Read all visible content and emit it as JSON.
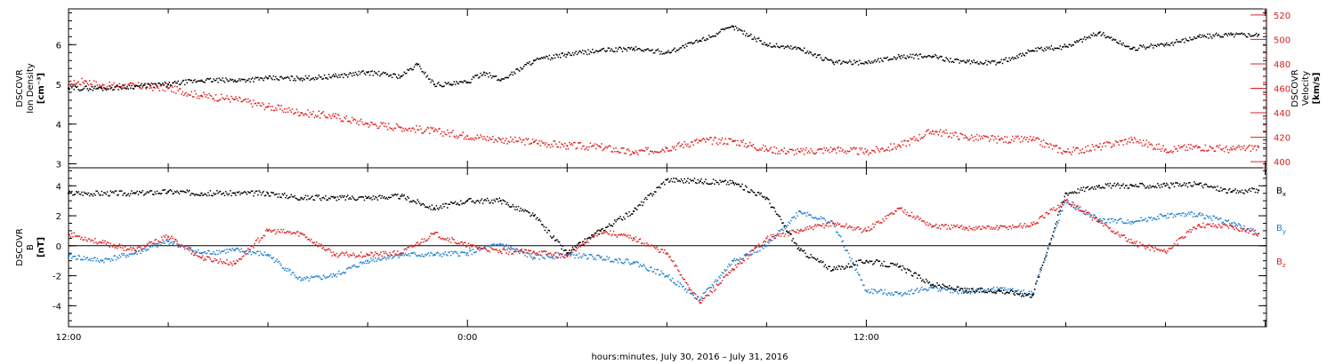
{
  "xlabel": "hours:minutes, July 30, 2016 – July 31, 2016",
  "x_tick_labels": [
    "12:00",
    "0:00",
    "12:00"
  ],
  "colors": {
    "black": "#000000",
    "red": "#e02020",
    "blue": "#1e7fd0"
  },
  "chart_data": [
    {
      "type": "scatter",
      "panel": "top",
      "x_unit": "hours since 12:00 July 30, 2016",
      "xlim": [
        0,
        36
      ],
      "left_axis": {
        "ylabel_lines": [
          "DSCOVR",
          "Ion Density",
          "[cm⁻³]"
        ],
        "ylim": [
          2.9,
          6.9
        ],
        "ticks": [
          3,
          4,
          5,
          6
        ]
      },
      "right_axis": {
        "ylabel_lines": [
          "DSCOVR",
          "Velocity",
          "[km/s]"
        ],
        "ylim": [
          395,
          525
        ],
        "ticks": [
          400,
          420,
          440,
          460,
          480,
          500,
          520
        ]
      },
      "series": [
        {
          "name": "Ion Density",
          "axis": "left",
          "color": "#000000",
          "points": [
            [
              0.0,
              4.9
            ],
            [
              1.0,
              4.9
            ],
            [
              2.0,
              4.95
            ],
            [
              3.0,
              5.0
            ],
            [
              4.0,
              5.1
            ],
            [
              5.0,
              5.1
            ],
            [
              6.0,
              5.15
            ],
            [
              7.0,
              5.15
            ],
            [
              8.0,
              5.2
            ],
            [
              9.0,
              5.3
            ],
            [
              10.0,
              5.2
            ],
            [
              10.5,
              5.5
            ],
            [
              11.0,
              5.0
            ],
            [
              11.5,
              5.0
            ],
            [
              12.0,
              5.05
            ],
            [
              12.5,
              5.3
            ],
            [
              13.0,
              5.1
            ],
            [
              14.0,
              5.6
            ],
            [
              15.0,
              5.75
            ],
            [
              16.0,
              5.85
            ],
            [
              17.0,
              5.9
            ],
            [
              18.0,
              5.8
            ],
            [
              19.0,
              6.1
            ],
            [
              20.0,
              6.45
            ],
            [
              21.0,
              6.0
            ],
            [
              22.0,
              5.9
            ],
            [
              23.0,
              5.55
            ],
            [
              24.0,
              5.55
            ],
            [
              25.0,
              5.7
            ],
            [
              26.0,
              5.7
            ],
            [
              27.0,
              5.55
            ],
            [
              28.0,
              5.55
            ],
            [
              29.0,
              5.85
            ],
            [
              30.0,
              5.95
            ],
            [
              31.0,
              6.3
            ],
            [
              32.0,
              5.9
            ],
            [
              33.0,
              6.0
            ],
            [
              34.0,
              6.2
            ],
            [
              35.0,
              6.25
            ],
            [
              35.8,
              6.25
            ]
          ]
        },
        {
          "name": "Velocity",
          "axis": "right",
          "color": "#e02020",
          "points": [
            [
              0.0,
              463
            ],
            [
              0.5,
              466
            ],
            [
              1.0,
              462
            ],
            [
              2.0,
              462
            ],
            [
              3.0,
              460
            ],
            [
              4.0,
              454
            ],
            [
              5.0,
              451
            ],
            [
              6.0,
              445
            ],
            [
              7.0,
              440
            ],
            [
              8.0,
              437
            ],
            [
              9.0,
              431
            ],
            [
              10.0,
              428
            ],
            [
              11.0,
              425
            ],
            [
              12.0,
              421
            ],
            [
              13.0,
              418
            ],
            [
              14.0,
              416
            ],
            [
              15.0,
              413
            ],
            [
              16.0,
              412
            ],
            [
              17.0,
              407
            ],
            [
              18.0,
              411
            ],
            [
              19.0,
              417
            ],
            [
              20.0,
              417
            ],
            [
              21.0,
              410
            ],
            [
              22.0,
              408
            ],
            [
              23.0,
              410
            ],
            [
              24.0,
              408
            ],
            [
              25.0,
              413
            ],
            [
              26.0,
              425
            ],
            [
              27.0,
              420
            ],
            [
              28.0,
              418
            ],
            [
              29.0,
              418
            ],
            [
              30.0,
              408
            ],
            [
              31.0,
              412
            ],
            [
              32.0,
              418
            ],
            [
              33.0,
              410
            ],
            [
              34.0,
              412
            ],
            [
              35.0,
              410
            ],
            [
              35.8,
              412
            ]
          ]
        }
      ]
    },
    {
      "type": "scatter",
      "panel": "bottom",
      "x_unit": "hours since 12:00 July 30, 2016",
      "xlim": [
        0,
        36
      ],
      "ylabel_lines": [
        "DSCOVR",
        "B",
        "[nT]"
      ],
      "ylim": [
        -5.4,
        5.2
      ],
      "ticks": [
        -4,
        -2,
        0,
        2,
        4
      ],
      "zero_line": true,
      "legend": "right",
      "series": [
        {
          "name": "Bx",
          "label_main": "B",
          "label_sub": "x",
          "color": "#000000",
          "points": [
            [
              0.0,
              3.5
            ],
            [
              2.0,
              3.5
            ],
            [
              3.0,
              3.6
            ],
            [
              4.0,
              3.5
            ],
            [
              5.0,
              3.5
            ],
            [
              6.0,
              3.5
            ],
            [
              7.0,
              3.2
            ],
            [
              8.0,
              3.2
            ],
            [
              9.0,
              3.2
            ],
            [
              10.0,
              3.3
            ],
            [
              11.0,
              2.5
            ],
            [
              12.0,
              3.0
            ],
            [
              13.0,
              3.0
            ],
            [
              14.0,
              2.0
            ],
            [
              15.0,
              -0.5
            ],
            [
              16.0,
              1.0
            ],
            [
              17.0,
              2.3
            ],
            [
              18.0,
              4.4
            ],
            [
              19.0,
              4.3
            ],
            [
              20.0,
              4.2
            ],
            [
              21.0,
              3.2
            ],
            [
              22.0,
              -0.3
            ],
            [
              23.0,
              -1.6
            ],
            [
              24.0,
              -1.0
            ],
            [
              25.0,
              -1.4
            ],
            [
              26.0,
              -2.6
            ],
            [
              27.0,
              -3.0
            ],
            [
              28.0,
              -3.0
            ],
            [
              29.0,
              -3.3
            ],
            [
              30.0,
              3.5
            ],
            [
              31.0,
              4.0
            ],
            [
              32.0,
              4.0
            ],
            [
              33.0,
              4.0
            ],
            [
              34.0,
              4.1
            ],
            [
              35.0,
              3.6
            ],
            [
              35.8,
              3.7
            ]
          ]
        },
        {
          "name": "By",
          "label_main": "B",
          "label_sub": "y",
          "color": "#1e7fd0",
          "points": [
            [
              0.0,
              -0.7
            ],
            [
              1.0,
              -1.0
            ],
            [
              2.0,
              -0.5
            ],
            [
              3.0,
              0.3
            ],
            [
              4.0,
              -0.5
            ],
            [
              5.0,
              -0.3
            ],
            [
              6.0,
              -0.6
            ],
            [
              7.0,
              -2.3
            ],
            [
              8.0,
              -2.0
            ],
            [
              9.0,
              -1.0
            ],
            [
              10.0,
              -0.6
            ],
            [
              11.0,
              -0.6
            ],
            [
              12.0,
              -0.5
            ],
            [
              13.0,
              0.1
            ],
            [
              14.0,
              -0.8
            ],
            [
              15.0,
              -0.6
            ],
            [
              16.0,
              -0.8
            ],
            [
              17.0,
              -1.1
            ],
            [
              18.0,
              -2.0
            ],
            [
              19.0,
              -3.6
            ],
            [
              20.0,
              -1.0
            ],
            [
              21.0,
              0.0
            ],
            [
              22.0,
              2.3
            ],
            [
              23.0,
              1.5
            ],
            [
              24.0,
              -3.0
            ],
            [
              25.0,
              -3.2
            ],
            [
              26.0,
              -2.8
            ],
            [
              27.0,
              -3.1
            ],
            [
              28.0,
              -2.9
            ],
            [
              29.0,
              -3.2
            ],
            [
              30.0,
              3.0
            ],
            [
              31.0,
              1.7
            ],
            [
              32.0,
              1.6
            ],
            [
              33.0,
              2.0
            ],
            [
              34.0,
              2.1
            ],
            [
              35.0,
              1.5
            ],
            [
              35.8,
              0.8
            ]
          ]
        },
        {
          "name": "Bz",
          "label_main": "B",
          "label_sub": "z",
          "color": "#e02020",
          "points": [
            [
              0.0,
              0.8
            ],
            [
              1.0,
              0.2
            ],
            [
              2.0,
              -0.3
            ],
            [
              3.0,
              0.6
            ],
            [
              4.0,
              -0.8
            ],
            [
              5.0,
              -1.2
            ],
            [
              6.0,
              1.0
            ],
            [
              7.0,
              0.8
            ],
            [
              8.0,
              -0.6
            ],
            [
              9.0,
              -0.6
            ],
            [
              10.0,
              -0.5
            ],
            [
              11.0,
              0.8
            ],
            [
              12.0,
              0.0
            ],
            [
              13.0,
              -0.4
            ],
            [
              14.0,
              -0.4
            ],
            [
              15.0,
              -0.7
            ],
            [
              16.0,
              1.0
            ],
            [
              17.0,
              0.5
            ],
            [
              18.0,
              -0.5
            ],
            [
              19.0,
              -3.8
            ],
            [
              20.0,
              -1.6
            ],
            [
              21.0,
              0.5
            ],
            [
              22.0,
              1.0
            ],
            [
              23.0,
              1.5
            ],
            [
              24.0,
              1.0
            ],
            [
              25.0,
              2.5
            ],
            [
              26.0,
              1.3
            ],
            [
              27.0,
              1.2
            ],
            [
              28.0,
              1.2
            ],
            [
              29.0,
              1.4
            ],
            [
              30.0,
              3.0
            ],
            [
              31.0,
              1.6
            ],
            [
              32.0,
              0.2
            ],
            [
              33.0,
              -0.4
            ],
            [
              34.0,
              1.4
            ],
            [
              35.0,
              1.3
            ],
            [
              35.8,
              0.8
            ]
          ]
        }
      ]
    }
  ]
}
